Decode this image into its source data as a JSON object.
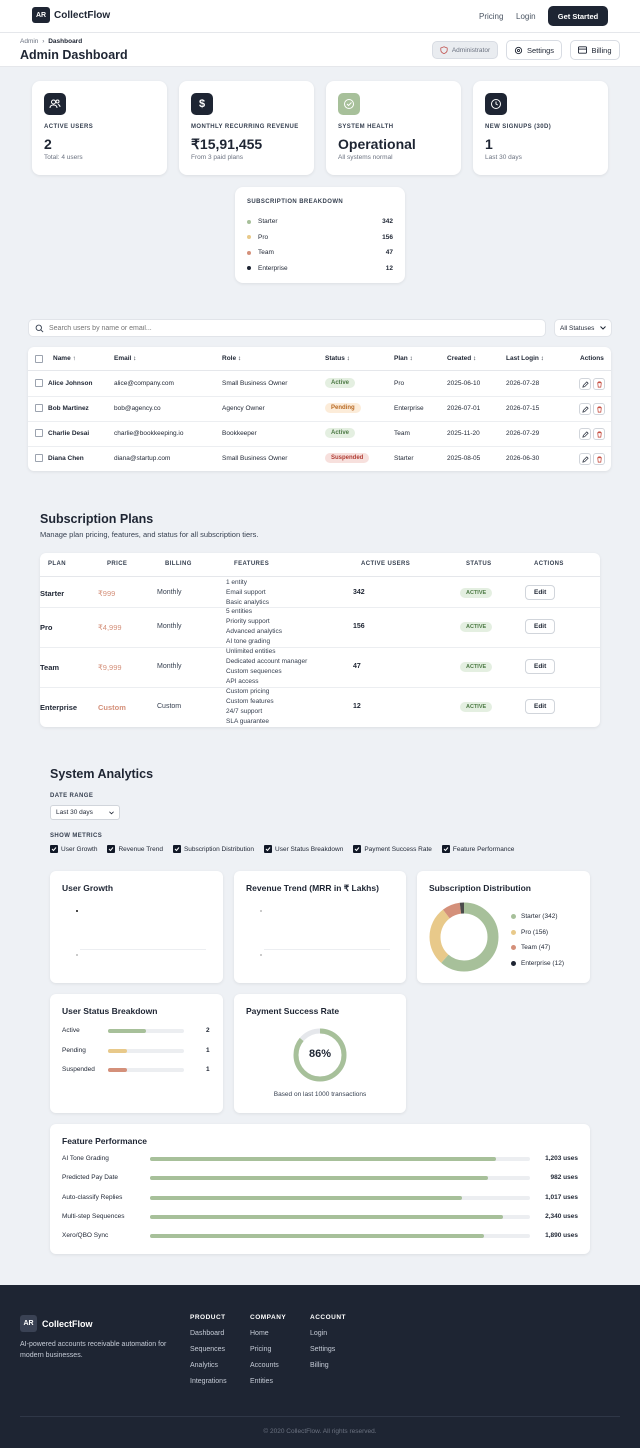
{
  "nav": {
    "logo": "AR",
    "brand": "CollectFlow",
    "links": [
      "Pricing",
      "Login"
    ],
    "cta": "Get Started"
  },
  "header": {
    "breadcrumb_root": "Admin",
    "breadcrumb_current": "Dashboard",
    "title": "Admin Dashboard",
    "role_badge": "Administrator",
    "settings": "Settings",
    "billing": "Billing"
  },
  "stats": [
    {
      "label": "ACTIVE USERS",
      "value": "2",
      "sub": "Total: 4 users",
      "icon": "users-icon"
    },
    {
      "label": "MONTHLY RECURRING REVENUE",
      "value": "₹15,91,455",
      "sub": "From 3 paid plans",
      "icon": "dollar-icon"
    },
    {
      "label": "SYSTEM HEALTH",
      "value": "Operational",
      "sub": "All systems normal",
      "icon": "check-badge-icon"
    },
    {
      "label": "NEW SIGNUPS (30D)",
      "value": "1",
      "sub": "Last 30 days",
      "icon": "clock-icon"
    }
  ],
  "breakdown": {
    "title": "SUBSCRIPTION BREAKDOWN",
    "items": [
      {
        "name": "Starter",
        "count": "342",
        "color": "#a7c09a"
      },
      {
        "name": "Pro",
        "count": "156",
        "color": "#e8c98a"
      },
      {
        "name": "Team",
        "count": "47",
        "color": "#d4907a"
      },
      {
        "name": "Enterprise",
        "count": "12",
        "color": "#1e2533"
      }
    ]
  },
  "users": {
    "search_placeholder": "Search users by name or email...",
    "filter": "All Statuses",
    "columns": [
      "Name ↑",
      "Email ↕",
      "Role ↕",
      "Status ↕",
      "Plan ↕",
      "Created ↕",
      "Last Login ↕",
      "Actions"
    ],
    "rows": [
      {
        "name": "Alice Johnson",
        "email": "alice@company.com",
        "role": "Small Business Owner",
        "status": "Active",
        "plan": "Pro",
        "created": "2025-06-10",
        "last_login": "2026-07-28"
      },
      {
        "name": "Bob Martinez",
        "email": "bob@agency.co",
        "role": "Agency Owner",
        "status": "Pending",
        "plan": "Enterprise",
        "created": "2026-07-01",
        "last_login": "2026-07-15"
      },
      {
        "name": "Charlie Desai",
        "email": "charlie@bookkeeping.io",
        "role": "Bookkeeper",
        "status": "Active",
        "plan": "Team",
        "created": "2025-11-20",
        "last_login": "2026-07-29"
      },
      {
        "name": "Diana Chen",
        "email": "diana@startup.com",
        "role": "Small Business Owner",
        "status": "Suspended",
        "plan": "Starter",
        "created": "2025-08-05",
        "last_login": "2026-06-30"
      }
    ]
  },
  "plans": {
    "title": "Subscription Plans",
    "subtitle": "Manage plan pricing, features, and status for all subscription tiers.",
    "columns": [
      "PLAN",
      "PRICE",
      "BILLING",
      "FEATURES",
      "ACTIVE USERS",
      "STATUS",
      "ACTIONS"
    ],
    "rows": [
      {
        "plan": "Starter",
        "price": "₹999",
        "billing": "Monthly",
        "features": [
          "1 entity",
          "Email support",
          "Basic analytics"
        ],
        "users": "342",
        "status": "ACTIVE",
        "action": "Edit"
      },
      {
        "plan": "Pro",
        "price": "₹4,999",
        "billing": "Monthly",
        "features": [
          "5 entities",
          "Priority support",
          "Advanced analytics",
          "AI tone grading"
        ],
        "users": "156",
        "status": "ACTIVE",
        "action": "Edit"
      },
      {
        "plan": "Team",
        "price": "₹9,999",
        "billing": "Monthly",
        "features": [
          "Unlimited entities",
          "Dedicated account manager",
          "Custom sequences",
          "API access"
        ],
        "users": "47",
        "status": "ACTIVE",
        "action": "Edit"
      },
      {
        "plan": "Enterprise",
        "price": "Custom",
        "billing": "Custom",
        "features": [
          "Custom pricing",
          "Custom features",
          "24/7 support",
          "SLA guarantee"
        ],
        "users": "12",
        "status": "ACTIVE",
        "action": "Edit"
      }
    ]
  },
  "analytics": {
    "title": "System Analytics",
    "date_range_label": "DATE RANGE",
    "date_range": "Last 30 days",
    "metrics_label": "SHOW METRICS",
    "metrics": [
      "User Growth",
      "Revenue Trend",
      "Subscription Distribution",
      "User Status Breakdown",
      "Payment Success Rate",
      "Feature Performance"
    ],
    "user_growth_title": "User Growth",
    "revenue_title": "Revenue Trend (MRR in ₹ Lakhs)",
    "distribution_title": "Subscription Distribution",
    "distribution_legend": [
      "Starter (342)",
      "Pro (156)",
      "Team (47)",
      "Enterprise (12)"
    ],
    "status_title": "User Status Breakdown",
    "payment_title": "Payment Success Rate",
    "payment_value": "86%",
    "payment_note": "Based on last 1000 transactions",
    "feature_title": "Feature Performance"
  },
  "chart_data": [
    {
      "type": "pie",
      "title": "Subscription Distribution",
      "categories": [
        "Starter",
        "Pro",
        "Team",
        "Enterprise"
      ],
      "values": [
        342,
        156,
        47,
        12
      ],
      "colors": [
        "#a7c09a",
        "#e8c98a",
        "#d4907a",
        "#4b4b4b"
      ]
    },
    {
      "type": "bar",
      "title": "User Status Breakdown",
      "categories": [
        "Active",
        "Pending",
        "Suspended"
      ],
      "values": [
        2,
        1,
        1
      ],
      "colors": [
        "#a7c09a",
        "#e8c98a",
        "#d4907a"
      ],
      "max": 4
    },
    {
      "type": "pie",
      "title": "Payment Success Rate",
      "categories": [
        "Success",
        "Failed"
      ],
      "values": [
        86,
        14
      ]
    },
    {
      "type": "bar",
      "title": "Feature Performance",
      "categories": [
        "AI Tone Grading",
        "Predicted Pay Date",
        "Auto-classify Replies",
        "Multi-step Sequences",
        "Xero/QBO Sync"
      ],
      "values": [
        1203,
        982,
        1017,
        2340,
        1890
      ],
      "labels": [
        "1,203 uses",
        "982 uses",
        "1,017 uses",
        "2,340 uses",
        "1,890 uses"
      ],
      "fractions": [
        0.91,
        0.89,
        0.82,
        0.93,
        0.88
      ]
    }
  ],
  "footer": {
    "logo": "AR",
    "brand": "CollectFlow",
    "tagline": "AI-powered accounts receivable automation for modern businesses.",
    "cols": [
      {
        "title": "PRODUCT",
        "links": [
          "Dashboard",
          "Sequences",
          "Analytics",
          "Integrations"
        ]
      },
      {
        "title": "COMPANY",
        "links": [
          "Home",
          "Pricing",
          "Accounts",
          "Entities"
        ]
      },
      {
        "title": "ACCOUNT",
        "links": [
          "Login",
          "Settings",
          "Billing"
        ]
      }
    ],
    "copyright": "© 2020 CollectFlow. All rights reserved."
  }
}
